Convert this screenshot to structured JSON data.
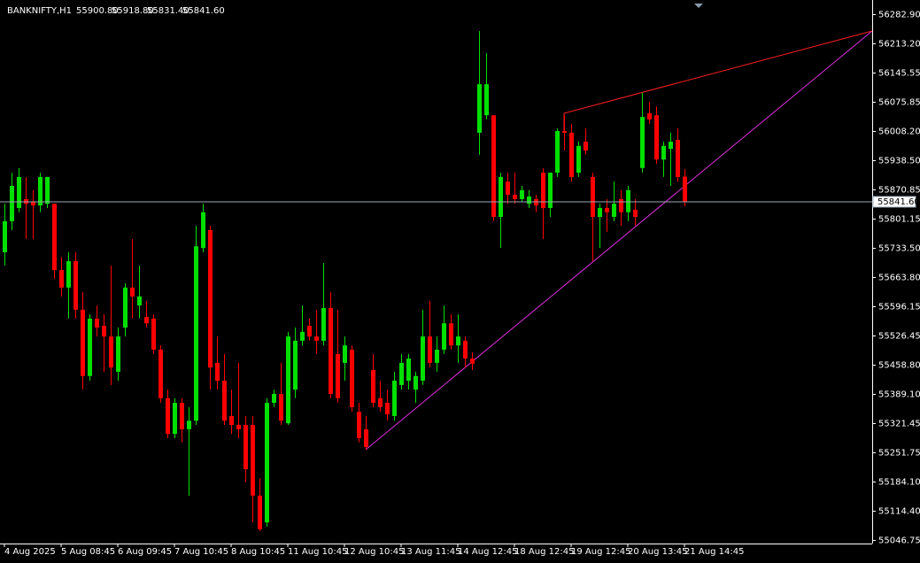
{
  "chart_data": {
    "type": "candlestick",
    "title": "BANKNIFTY,H1",
    "last_bar_labels": [
      "55900.80",
      "55918.80",
      "55831.40",
      "55841.60"
    ],
    "up_color": "#00e000",
    "down_color": "#ff0000",
    "last_price_color": "#9aa8b4",
    "last_price": {
      "value": 55841.6,
      "label": "55841.60"
    },
    "ylim": [
      55038.3,
      56316
    ],
    "yticks": [
      {
        "value": 56282.9,
        "label": "56282.90"
      },
      {
        "value": 56213.2,
        "label": "56213.20"
      },
      56145.55,
      56075.85,
      {
        "value": 56008.2,
        "label": "56008.20"
      },
      {
        "value": 55938.5,
        "label": "55938.50"
      },
      55870.85,
      55801.15,
      {
        "value": 55733.5,
        "label": "55733.50"
      },
      {
        "value": 55663.8,
        "label": "55663.80"
      },
      55596.15,
      55526.45,
      {
        "value": 55458.8,
        "label": "55458.80"
      },
      {
        "value": 55389.1,
        "label": "55389.10"
      },
      55321.45,
      55251.75,
      {
        "value": 55184.1,
        "label": "55184.10"
      },
      {
        "value": 55114.4,
        "label": "55114.40"
      },
      55046.75
    ],
    "xticks": [
      {
        "value": 0,
        "label": "4 Aug 2025"
      },
      {
        "value": 8,
        "label": "5 Aug 08:45"
      },
      {
        "value": 16,
        "label": "6 Aug 09:45"
      },
      {
        "value": 24,
        "label": "7 Aug 10:45"
      },
      {
        "value": 32,
        "label": "8 Aug 10:45"
      },
      {
        "value": 40,
        "label": "11 Aug 10:45"
      },
      {
        "value": 48,
        "label": "12 Aug 10:45"
      },
      {
        "value": 56,
        "label": "13 Aug 11:45"
      },
      {
        "value": 64,
        "label": "14 Aug 12:45"
      },
      {
        "value": 72,
        "label": "18 Aug 12:45"
      },
      {
        "value": 80,
        "label": "19 Aug 12:45"
      },
      {
        "value": 88,
        "label": "20 Aug 13:45"
      },
      {
        "value": 96,
        "label": "21 Aug 14:45"
      }
    ],
    "open": [
      55723,
      55796,
      55827,
      55848,
      55842,
      55833,
      55837,
      55837,
      55681,
      55640,
      55702,
      55588,
      55432,
      55567,
      55550,
      55525,
      55442,
      55546,
      55640,
      55598,
      55571,
      55567,
      55494,
      55380,
      55296,
      55369,
      55307,
      55327,
      55733,
      55775,
      55463,
      55421,
      55338,
      55317,
      55317,
      55317,
      55151,
      55088,
      55369,
      55390,
      55321,
      55400,
      55515,
      55550,
      55525,
      55515,
      55592,
      55484,
      55463,
      55494,
      55348,
      55307,
      55446,
      55380,
      55369,
      55338,
      55411,
      55421,
      55400,
      55421,
      55525,
      55463,
      55494,
      55556,
      55504,
      55515,
      55473,
      56004,
      56045,
      56045,
      55806,
      55889,
      55858,
      55848,
      55837,
      55848,
      55910,
      55827,
      55910,
      56008,
      56004,
      55910,
      55983,
      55900,
      55806,
      55827,
      55806,
      55848,
      55817,
      55823,
      55921,
      56050,
      56045,
      55941,
      55966,
      55987,
      55900.8
    ],
    "high": [
      55837,
      55910,
      55921,
      55900,
      55869,
      55910,
      55900,
      55837,
      55712,
      55723,
      55723,
      55629,
      55577,
      55598,
      55577,
      55692,
      55546,
      55650,
      55754,
      55692,
      55609,
      55577,
      55504,
      55400,
      55380,
      55380,
      55359,
      55785,
      55837,
      55785,
      55525,
      55484,
      55400,
      55463,
      55338,
      55338,
      55192,
      55380,
      55400,
      55463,
      55536,
      55546,
      55598,
      55567,
      55588,
      55698,
      55629,
      55588,
      55525,
      55504,
      55369,
      55338,
      55484,
      55421,
      55400,
      55442,
      55484,
      55484,
      55442,
      55588,
      55609,
      55525,
      55598,
      55577,
      55577,
      55525,
      55488,
      56243,
      56191,
      56045,
      55910,
      55910,
      55910,
      55879,
      55869,
      55858,
      55921,
      55910,
      56014,
      56045,
      56025,
      55983,
      56014,
      55910,
      55837,
      55848,
      55889,
      55869,
      55879,
      55848,
      56098,
      56077,
      56066,
      55983,
      56004,
      56014,
      55918.8
    ],
    "low": [
      55692,
      55775,
      55817,
      55754,
      55754,
      55817,
      55827,
      55660,
      55619,
      55567,
      55567,
      55400,
      55421,
      55525,
      55442,
      55411,
      55421,
      55525,
      55567,
      55567,
      55546,
      55484,
      55369,
      55286,
      55286,
      55276,
      55151,
      55317,
      55723,
      55400,
      55400,
      55317,
      55296,
      55286,
      55182,
      55088,
      55068,
      55078,
      55359,
      55317,
      55317,
      55380,
      55504,
      55515,
      55484,
      55504,
      55380,
      55369,
      55421,
      55348,
      55276,
      55259,
      55359,
      55348,
      55327,
      55327,
      55400,
      55400,
      55369,
      55411,
      55452,
      55442,
      55484,
      55494,
      55463,
      55452,
      55446,
      55952,
      56035,
      55796,
      55733,
      55837,
      55837,
      55842,
      55827,
      55817,
      55754,
      55806,
      55900,
      55962,
      55889,
      55900,
      55952,
      55702,
      55733,
      55771,
      55796,
      55785,
      55796,
      55785,
      55910,
      56025,
      55931,
      55900,
      55879,
      55889,
      55831.4
    ],
    "close": [
      55796,
      55879,
      55900,
      55837,
      55833,
      55900,
      55900,
      55681,
      55640,
      55702,
      55588,
      55432,
      55567,
      55546,
      55525,
      55452,
      55525,
      55640,
      55619,
      55619,
      55556,
      55494,
      55380,
      55296,
      55369,
      55307,
      55327,
      55737,
      55817,
      55452,
      55421,
      55327,
      55317,
      55307,
      55213,
      55151,
      55072,
      55369,
      55390,
      55327,
      55525,
      55515,
      55536,
      55525,
      55515,
      55592,
      55390,
      55380,
      55504,
      55359,
      55286,
      55265,
      55369,
      55359,
      55342,
      55421,
      55463,
      55473,
      55432,
      55525,
      55463,
      55494,
      55556,
      55504,
      55525,
      55473,
      55461,
      56118,
      56118,
      55806,
      55900,
      55858,
      55848,
      55869,
      55854,
      55833,
      55827,
      55910,
      56008,
      56004,
      55900,
      55973,
      55962,
      55806,
      55827,
      55817,
      55837,
      55817,
      55869,
      55806,
      56041,
      56035,
      55941,
      55973,
      55983,
      55900,
      55841.6
    ]
  }
}
